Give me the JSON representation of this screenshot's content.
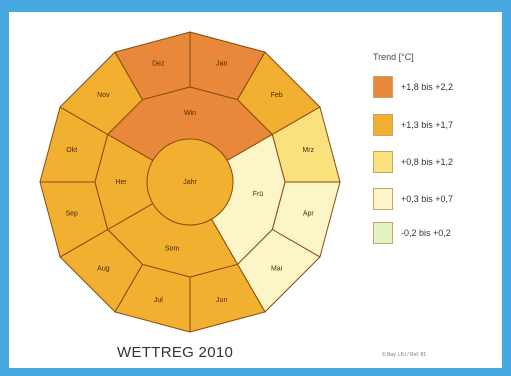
{
  "title": "WETTREG 2010",
  "credit": "© Bay. LfU / Ref. 81",
  "legend": {
    "title": "Trend  [°C]",
    "items": [
      {
        "label": "+1,8 bis +2,2",
        "color": "#e8883a"
      },
      {
        "label": "+1,3 bis +1,7",
        "color": "#f2b030"
      },
      {
        "label": "+0,8 bis +1,2",
        "color": "#f9e27e"
      },
      {
        "label": "+0,3 bis +0,7",
        "color": "#fbf5c8"
      },
      {
        "label": "-0,2 bis +0,2",
        "color": "#e4f2c4"
      }
    ]
  },
  "chart_data": {
    "type": "radial-segment-diagram",
    "months": [
      {
        "label": "Jan",
        "trend_class": "+1,8 bis +2,2"
      },
      {
        "label": "Feb",
        "trend_class": "+1,3 bis +1,7"
      },
      {
        "label": "Mrz",
        "trend_class": "+0,8 bis +1,2"
      },
      {
        "label": "Apr",
        "trend_class": "+0,3 bis +0,7"
      },
      {
        "label": "Mai",
        "trend_class": "+0,3 bis +0,7"
      },
      {
        "label": "Jun",
        "trend_class": "+1,3 bis +1,7"
      },
      {
        "label": "Jul",
        "trend_class": "+1,3 bis +1,7"
      },
      {
        "label": "Aug",
        "trend_class": "+1,3 bis +1,7"
      },
      {
        "label": "Sep",
        "trend_class": "+1,3 bis +1,7"
      },
      {
        "label": "Okt",
        "trend_class": "+1,3 bis +1,7"
      },
      {
        "label": "Nov",
        "trend_class": "+1,3 bis +1,7"
      },
      {
        "label": "Dez",
        "trend_class": "+1,8 bis +2,2"
      }
    ],
    "seasons": [
      {
        "label": "Win",
        "trend_class": "+1,8 bis +2,2"
      },
      {
        "label": "Frü",
        "trend_class": "+0,3 bis +0,7"
      },
      {
        "label": "Som",
        "trend_class": "+1,3 bis +1,7"
      },
      {
        "label": "Her",
        "trend_class": "+1,3 bis +1,7"
      }
    ],
    "year": {
      "label": "Jahr",
      "trend_class": "+1,3 bis +1,7"
    }
  }
}
